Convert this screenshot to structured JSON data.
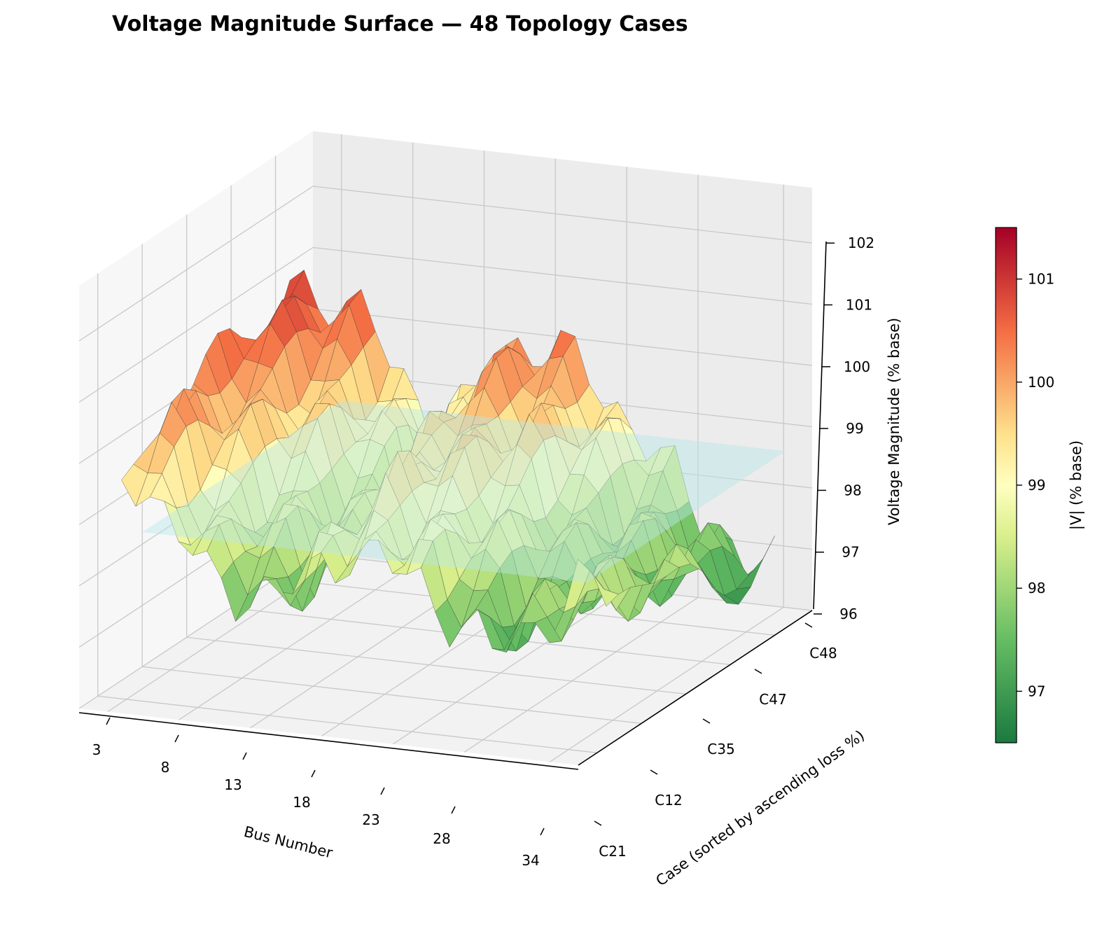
{
  "chart_data": {
    "type": "surface3d",
    "title": "Voltage Magnitude Surface — 48 Topology Cases",
    "xlabel": "Bus Number",
    "ylabel": "Case (sorted by ascending loss %)",
    "zlabel": "Voltage Magnitude (% base)",
    "colorbar_label": "|V| (% base)",
    "x_ticks": [
      "3",
      "8",
      "13",
      "18",
      "23",
      "28",
      "34"
    ],
    "y_ticks": [
      "C21",
      "C12",
      "C35",
      "C47",
      "C48"
    ],
    "z_ticks": [
      "96",
      "97",
      "98",
      "99",
      "100",
      "101",
      "102"
    ],
    "zlim": [
      96,
      102
    ],
    "colorbar_ticks": [
      "97",
      "98",
      "99",
      "100",
      "101"
    ],
    "colorbar_range": [
      96.5,
      101.5
    ],
    "colormap": "RdYlGn_r",
    "reference_plane": {
      "z": 98.7,
      "color": "#b8e6e6"
    },
    "surface_profile": {
      "bus": [
        3,
        8,
        13,
        18,
        23,
        28,
        34
      ],
      "front_case_voltage": [
        99.6,
        98.0,
        97.8,
        98.8,
        98.3,
        97.3,
        98.5
      ],
      "back_case_voltage": [
        100.9,
        100.2,
        98.6,
        100.3,
        100.0,
        98.6,
        97.1
      ]
    }
  }
}
